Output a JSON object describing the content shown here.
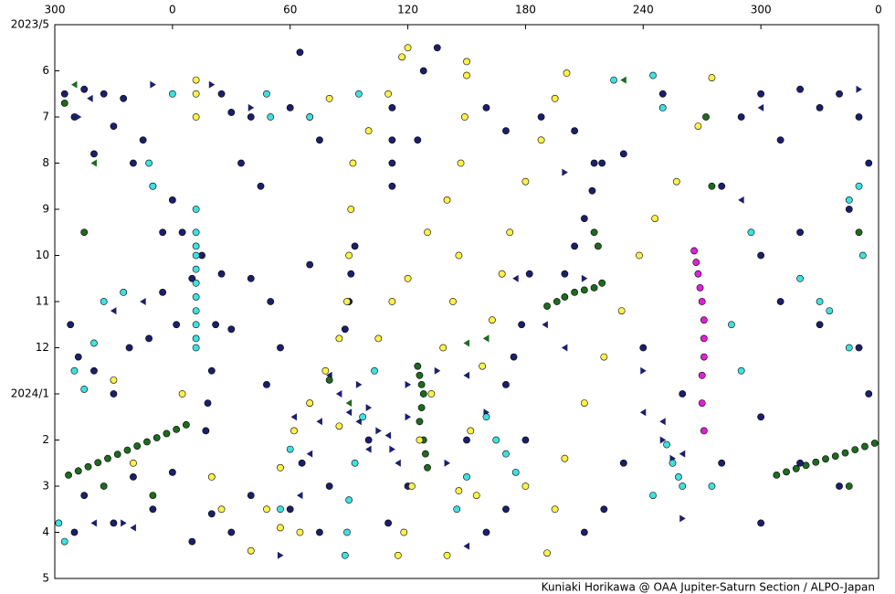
{
  "chart_data": {
    "type": "scatter",
    "credit": "Kuniaki Horikawa @ OAA Jupiter-Saturn Section / ALPO-Japan",
    "xlim": [
      -60,
      360
    ],
    "xticks": [
      {
        "value": -60,
        "label": "300"
      },
      0,
      60,
      120,
      180,
      240,
      300,
      {
        "value": 360,
        "label": "0"
      }
    ],
    "ylim": [
      0,
      12
    ],
    "y_reversed": true,
    "yticks": [
      {
        "value": 0,
        "label": "2023/5"
      },
      {
        "value": 1,
        "label": "6"
      },
      {
        "value": 2,
        "label": "7"
      },
      {
        "value": 3,
        "label": "8"
      },
      {
        "value": 4,
        "label": "9"
      },
      {
        "value": 5,
        "label": "10"
      },
      {
        "value": 6,
        "label": "11"
      },
      {
        "value": 7,
        "label": "12"
      },
      {
        "value": 8,
        "label": "2024/1"
      },
      {
        "value": 9,
        "label": "2"
      },
      {
        "value": 10,
        "label": "3"
      },
      {
        "value": 11,
        "label": "4"
      },
      {
        "value": 12,
        "label": "5"
      }
    ],
    "series": [
      {
        "color": "#1b1f6b",
        "marker": "circle",
        "x": [
          -55,
          -50,
          -45,
          -40,
          -35,
          -30,
          -25,
          -20,
          -15,
          -10,
          -5,
          0,
          5,
          10,
          15,
          25,
          30,
          35,
          40,
          45,
          50,
          55,
          -52,
          -48,
          -40,
          -30,
          -22,
          -12,
          -5,
          2,
          30,
          40,
          48,
          60,
          65,
          70,
          75,
          70,
          66,
          60,
          40,
          30,
          20,
          10,
          -10,
          -30,
          -50,
          -45,
          -20,
          0,
          135,
          128,
          125,
          160,
          170,
          188,
          205,
          215,
          230,
          250,
          280,
          290,
          300,
          310,
          320,
          330,
          340,
          350,
          355,
          345,
          320,
          300,
          310,
          330,
          350,
          355,
          300,
          320,
          340,
          300,
          280,
          260,
          240,
          230,
          220,
          210,
          180,
          170,
          160,
          150,
          120,
          110,
          100,
          80,
          75,
          25,
          22,
          20,
          18,
          17,
          112,
          112,
          112,
          112,
          182,
          178,
          174,
          170,
          219,
          214,
          210,
          205,
          200,
          93,
          91,
          90,
          88
        ],
        "y": [
          1.5,
          2.0,
          1.4,
          2.8,
          1.5,
          2.2,
          1.6,
          3.0,
          2.5,
          3.5,
          4.5,
          3.8,
          4.5,
          5.5,
          5.0,
          1.5,
          1.9,
          3.0,
          2.0,
          3.5,
          6.0,
          7.0,
          6.5,
          7.2,
          7.5,
          8.0,
          7.0,
          6.8,
          5.8,
          6.5,
          6.6,
          5.5,
          7.8,
          1.8,
          0.6,
          2.0,
          2.5,
          5.2,
          9.5,
          10.5,
          10.2,
          11.0,
          10.6,
          11.2,
          10.5,
          10.8,
          11.0,
          10.2,
          9.8,
          9.7,
          0.5,
          1.0,
          2.5,
          1.8,
          2.3,
          2.0,
          2.3,
          3.0,
          2.8,
          1.5,
          3.5,
          2.0,
          1.5,
          2.5,
          1.4,
          1.8,
          1.5,
          2.0,
          3.0,
          4.0,
          4.5,
          5.0,
          6.0,
          6.5,
          7.0,
          8.0,
          8.5,
          9.5,
          10.0,
          10.8,
          9.5,
          8.0,
          7.0,
          9.5,
          10.5,
          11.0,
          9.0,
          10.5,
          11.0,
          9.0,
          10.0,
          10.8,
          9.0,
          10.0,
          11.0,
          5.4,
          6.5,
          7.5,
          8.2,
          8.8,
          1.8,
          2.5,
          3.0,
          3.5,
          5.4,
          6.5,
          7.2,
          7.8,
          3.0,
          3.6,
          4.2,
          4.8,
          5.4,
          4.8,
          5.4,
          6.0,
          6.6
        ]
      },
      {
        "color": "#1b1f6b",
        "marker": "triangle-left",
        "x": [
          -42,
          -30,
          -15,
          62,
          75,
          90,
          100,
          110,
          115,
          150,
          160,
          175,
          190,
          200,
          240,
          250,
          260,
          -40,
          -20,
          150,
          80,
          85,
          95,
          70,
          65,
          300,
          290
        ],
        "y": [
          1.6,
          6.2,
          6.0,
          8.5,
          8.6,
          8.4,
          9.2,
          8.9,
          9.5,
          7.6,
          6.8,
          5.5,
          6.5,
          7.0,
          8.4,
          8.6,
          9.3,
          10.8,
          10.9,
          11.3,
          7.6,
          8.0,
          8.6,
          9.3,
          10.2,
          1.8,
          3.8
        ]
      },
      {
        "color": "#1b1f6b",
        "marker": "triangle-right",
        "x": [
          -48,
          -10,
          20,
          40,
          210,
          240,
          250,
          255,
          100,
          105,
          112,
          120,
          95,
          200,
          260,
          -25,
          55,
          140,
          160,
          120,
          135,
          350
        ],
        "y": [
          2.0,
          1.3,
          1.3,
          1.8,
          5.5,
          7.5,
          9.0,
          9.4,
          8.3,
          8.8,
          9.2,
          8.5,
          7.8,
          3.2,
          10.7,
          10.8,
          11.5,
          9.5,
          8.4,
          7.8,
          7.5,
          1.4
        ]
      },
      {
        "color": "#1e6a1e",
        "marker": "circle",
        "x": [
          -53,
          -48,
          -43,
          -38,
          -33,
          -28,
          -23,
          -18,
          -13,
          -8,
          -3,
          2,
          7,
          308,
          313,
          318,
          323,
          328,
          333,
          338,
          343,
          348,
          353,
          358,
          125,
          126,
          127,
          128,
          127,
          126,
          128,
          129,
          130,
          191,
          196,
          200,
          205,
          210,
          215,
          219,
          -55,
          215,
          217,
          275,
          272,
          350,
          -45,
          70,
          80,
          -35,
          -10,
          345
        ],
        "y": [
          9.76,
          9.67,
          9.58,
          9.49,
          9.4,
          9.31,
          9.22,
          9.13,
          9.04,
          8.95,
          8.86,
          8.77,
          8.67,
          9.76,
          9.69,
          9.62,
          9.55,
          9.48,
          9.41,
          9.35,
          9.28,
          9.21,
          9.14,
          9.07,
          7.4,
          7.6,
          7.8,
          8.0,
          8.3,
          8.6,
          9.0,
          9.3,
          9.6,
          6.1,
          6.0,
          5.9,
          5.8,
          5.75,
          5.7,
          5.6,
          1.7,
          4.5,
          4.8,
          3.5,
          2.0,
          4.5,
          4.5,
          8.2,
          7.7,
          10.0,
          10.2,
          10.0
        ]
      },
      {
        "color": "#1e6a1e",
        "marker": "triangle-left",
        "x": [
          150,
          160,
          -50,
          -40,
          230,
          90
        ],
        "y": [
          6.9,
          6.8,
          1.3,
          3.0,
          1.2,
          8.2
        ]
      },
      {
        "color": "#fff04a",
        "marker": "circle",
        "x": [
          117,
          110,
          100,
          92,
          91,
          90,
          89,
          85,
          78,
          70,
          62,
          55,
          48,
          40,
          150,
          149,
          147,
          140,
          130,
          120,
          112,
          105,
          146,
          143,
          138,
          132,
          126,
          122,
          118,
          115,
          201,
          195,
          188,
          180,
          172,
          168,
          163,
          158,
          152,
          146,
          140,
          275,
          268,
          257,
          246,
          238,
          229,
          220,
          210,
          200,
          195,
          191,
          12,
          12,
          12,
          5,
          20,
          25,
          55,
          65,
          80,
          85,
          120,
          150,
          155,
          180,
          -30,
          -20
        ],
        "y": [
          0.7,
          1.5,
          2.3,
          3.0,
          4.0,
          5.0,
          6.0,
          6.8,
          7.5,
          8.2,
          8.8,
          9.6,
          10.5,
          11.4,
          1.1,
          2.0,
          3.0,
          3.8,
          4.5,
          5.5,
          6.0,
          6.8,
          5.0,
          6.0,
          7.0,
          8.0,
          9.0,
          10.0,
          11.0,
          11.5,
          1.05,
          1.6,
          2.5,
          3.4,
          4.5,
          5.4,
          6.4,
          7.4,
          8.8,
          10.1,
          11.5,
          1.15,
          2.2,
          3.4,
          4.2,
          5.0,
          6.2,
          7.2,
          8.2,
          9.4,
          10.5,
          11.45,
          1.2,
          1.5,
          2.0,
          8.0,
          9.8,
          10.5,
          10.9,
          11.0,
          1.6,
          8.7,
          0.5,
          0.8,
          10.2,
          10.0,
          7.7,
          9.5
        ]
      },
      {
        "color": "#40e0e0",
        "marker": "circle",
        "x": [
          103,
          97,
          93,
          90,
          89,
          88,
          12,
          12,
          12,
          12,
          12,
          12,
          12,
          12,
          12,
          12,
          12,
          -58,
          -55,
          -50,
          -45,
          -40,
          -35,
          -25,
          -10,
          -12,
          0,
          48,
          50,
          55,
          60,
          70,
          95,
          225,
          245,
          250,
          252,
          255,
          258,
          260,
          245,
          275,
          285,
          290,
          295,
          320,
          330,
          335,
          345,
          350,
          352,
          345,
          160,
          165,
          170,
          175,
          145,
          150
        ],
        "y": [
          7.5,
          8.5,
          9.5,
          10.3,
          11.0,
          11.5,
          4.0,
          4.5,
          4.8,
          5.0,
          5.3,
          5.6,
          5.9,
          6.2,
          6.5,
          6.8,
          7.0,
          10.8,
          11.2,
          7.5,
          7.9,
          6.9,
          6.0,
          5.8,
          3.5,
          3.0,
          1.5,
          1.5,
          2.0,
          10.5,
          9.2,
          2.0,
          1.5,
          1.2,
          1.1,
          1.8,
          9.1,
          9.5,
          9.8,
          10.0,
          10.2,
          10.0,
          6.5,
          7.5,
          4.5,
          5.5,
          6.0,
          6.2,
          7.0,
          3.5,
          5.0,
          3.8,
          8.5,
          9.0,
          9.3,
          9.7,
          10.5,
          9.8
        ]
      },
      {
        "color": "#e020d8",
        "marker": "circle",
        "x": [
          266,
          267,
          268,
          269,
          270,
          271,
          271,
          271,
          270,
          270,
          271
        ],
        "y": [
          4.9,
          5.15,
          5.4,
          5.7,
          6.0,
          6.4,
          6.8,
          7.2,
          7.6,
          8.2,
          8.8
        ]
      }
    ]
  }
}
